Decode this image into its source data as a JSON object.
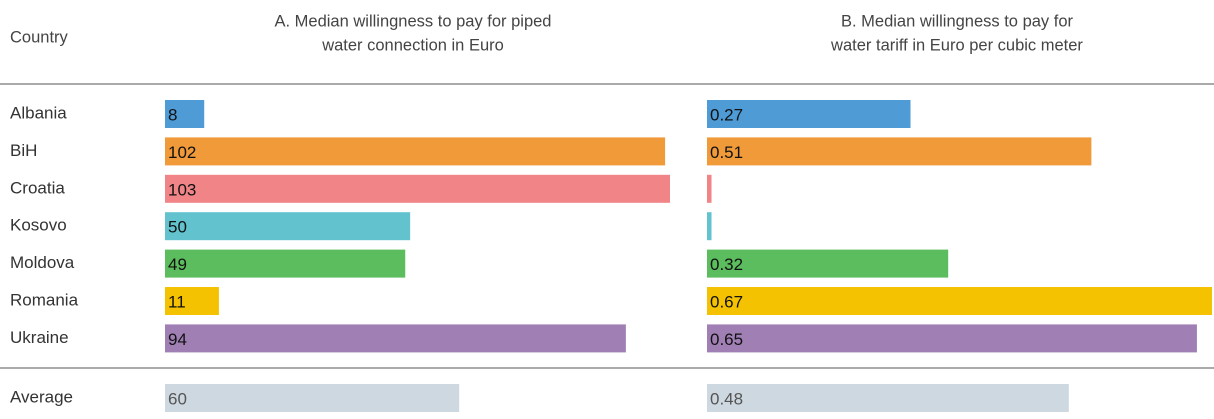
{
  "chart_data": {
    "type": "bar",
    "header": "Country",
    "categories": [
      "Albania",
      "BiH",
      "Croatia",
      "Kosovo",
      "Moldova",
      "Romania",
      "Ukraine"
    ],
    "colors": [
      "#4e9bd6",
      "#f09a3a",
      "#f08486",
      "#62c3cf",
      "#5bbd5d",
      "#f4c200",
      "#a07fb5"
    ],
    "average_label": "Average",
    "average_color": "#cdd8e0",
    "panels": [
      {
        "title": [
          "A. Median willingness to pay for piped",
          "water connection in Euro"
        ],
        "values": [
          8,
          102,
          103,
          50,
          49,
          11,
          94
        ],
        "xlim": [
          0,
          103
        ],
        "average": 60
      },
      {
        "title": [
          "B. Median willingness to pay for",
          "water tariff in Euro per cubic meter"
        ],
        "values": [
          0.27,
          0.51,
          0.006,
          0.006,
          0.32,
          0.67,
          0.65
        ],
        "value_labels": [
          "0.27",
          "0.51",
          null,
          null,
          "0.32",
          "0.67",
          "0.65"
        ],
        "xlim": [
          0,
          0.67
        ],
        "average": 0.48
      }
    ]
  }
}
